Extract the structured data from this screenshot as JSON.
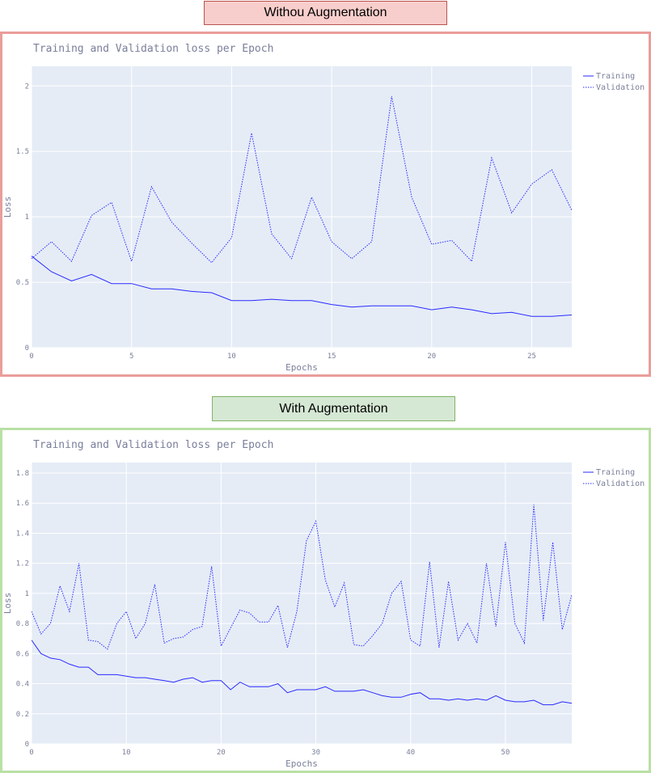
{
  "sections": [
    {
      "label": "Withou Augmentation",
      "accent": "#f8cecc",
      "border": "#ea9d9a"
    },
    {
      "label": "With Augmentation",
      "accent": "#d5e8d4",
      "border": "#b9e0a5"
    }
  ],
  "colors": {
    "line": "#2a2aff",
    "plot_bg": "#e5ecf6",
    "grid": "#ffffff",
    "text": "#7a7f9a"
  },
  "chart_data": [
    {
      "type": "line",
      "title": "Training and Validation loss per Epoch",
      "xlabel": "Epochs",
      "ylabel": "Loss",
      "xlim": [
        0,
        27
      ],
      "ylim": [
        0,
        2.15
      ],
      "xticks": [
        0,
        5,
        10,
        15,
        20,
        25
      ],
      "yticks": [
        0,
        0.5,
        1,
        1.5,
        2
      ],
      "ytick_labels": [
        "0",
        "0.5",
        "1",
        "1.5",
        "2"
      ],
      "grid": true,
      "legend_position": "top-right",
      "series": [
        {
          "name": "Training",
          "style": "solid",
          "values": [
            0.7,
            0.58,
            0.51,
            0.56,
            0.49,
            0.49,
            0.45,
            0.45,
            0.43,
            0.42,
            0.36,
            0.36,
            0.37,
            0.36,
            0.36,
            0.33,
            0.31,
            0.32,
            0.32,
            0.32,
            0.29,
            0.31,
            0.29,
            0.26,
            0.27,
            0.24,
            0.24,
            0.25
          ]
        },
        {
          "name": "Validation",
          "style": "dotted",
          "values": [
            0.68,
            0.81,
            0.66,
            1.01,
            1.11,
            0.66,
            1.23,
            0.96,
            0.8,
            0.65,
            0.84,
            1.64,
            0.87,
            0.68,
            1.15,
            0.81,
            0.68,
            0.81,
            1.92,
            1.15,
            0.79,
            0.82,
            0.66,
            1.45,
            1.03,
            1.25,
            1.36,
            1.05
          ]
        }
      ]
    },
    {
      "type": "line",
      "title": "Training and Validation loss per Epoch",
      "xlabel": "Epochs",
      "ylabel": "Loss",
      "xlim": [
        0,
        57
      ],
      "ylim": [
        0,
        1.87
      ],
      "xticks": [
        0,
        10,
        20,
        30,
        40,
        50
      ],
      "yticks": [
        0,
        0.2,
        0.4,
        0.6,
        0.8,
        1,
        1.2,
        1.4,
        1.6,
        1.8
      ],
      "ytick_labels": [
        "0",
        "0.2",
        "0.4",
        "0.6",
        "0.8",
        "1",
        "1.2",
        "1.4",
        "1.6",
        "1.8"
      ],
      "grid": true,
      "legend_position": "top-right",
      "series": [
        {
          "name": "Training",
          "style": "solid",
          "values": [
            0.69,
            0.6,
            0.57,
            0.56,
            0.53,
            0.51,
            0.51,
            0.46,
            0.46,
            0.46,
            0.45,
            0.44,
            0.44,
            0.43,
            0.42,
            0.41,
            0.43,
            0.44,
            0.41,
            0.42,
            0.42,
            0.36,
            0.41,
            0.38,
            0.38,
            0.38,
            0.4,
            0.34,
            0.36,
            0.36,
            0.36,
            0.38,
            0.35,
            0.35,
            0.35,
            0.36,
            0.34,
            0.32,
            0.31,
            0.31,
            0.33,
            0.34,
            0.3,
            0.3,
            0.29,
            0.3,
            0.29,
            0.3,
            0.29,
            0.32,
            0.29,
            0.28,
            0.28,
            0.29,
            0.26,
            0.26,
            0.28,
            0.27
          ]
        },
        {
          "name": "Validation",
          "style": "dotted",
          "values": [
            0.88,
            0.73,
            0.8,
            1.05,
            0.88,
            1.2,
            0.69,
            0.68,
            0.63,
            0.8,
            0.88,
            0.7,
            0.8,
            1.06,
            0.67,
            0.7,
            0.71,
            0.76,
            0.78,
            1.18,
            0.65,
            0.77,
            0.89,
            0.87,
            0.81,
            0.81,
            0.92,
            0.64,
            0.88,
            1.35,
            1.48,
            1.09,
            0.91,
            1.07,
            0.66,
            0.65,
            0.72,
            0.8,
            1.0,
            1.08,
            0.69,
            0.65,
            1.21,
            0.64,
            1.08,
            0.69,
            0.8,
            0.67,
            1.2,
            0.78,
            1.34,
            0.8,
            0.67,
            1.59,
            0.82,
            1.34,
            0.76,
            0.99
          ]
        }
      ]
    }
  ]
}
